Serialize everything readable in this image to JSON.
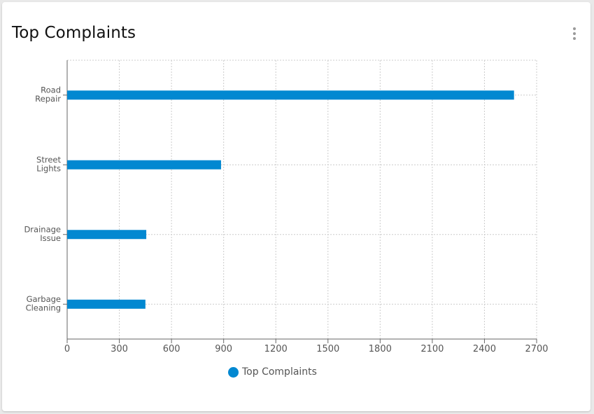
{
  "card": {
    "title": "Top Complaints",
    "menu_icon": "more-vertical-icon"
  },
  "colors": {
    "bar": "#0288d1",
    "grid": "#cccccc",
    "axis": "#666666",
    "tick_text": "#555555"
  },
  "chart_data": {
    "type": "bar",
    "orientation": "horizontal",
    "title": "",
    "xlabel": "",
    "ylabel": "",
    "xlim": [
      0,
      2700
    ],
    "x_ticks": [
      0,
      300,
      600,
      900,
      1200,
      1500,
      1800,
      2100,
      2400,
      2700
    ],
    "grid": true,
    "legend_position": "bottom",
    "categories": [
      [
        "Road",
        "Repair"
      ],
      [
        "Street",
        "Lights"
      ],
      [
        "Drainage",
        "Issue"
      ],
      [
        "Garbage",
        "Cleaning"
      ]
    ],
    "series": [
      {
        "name": "Top Complaints",
        "values": [
          2570,
          885,
          455,
          450
        ]
      }
    ]
  }
}
